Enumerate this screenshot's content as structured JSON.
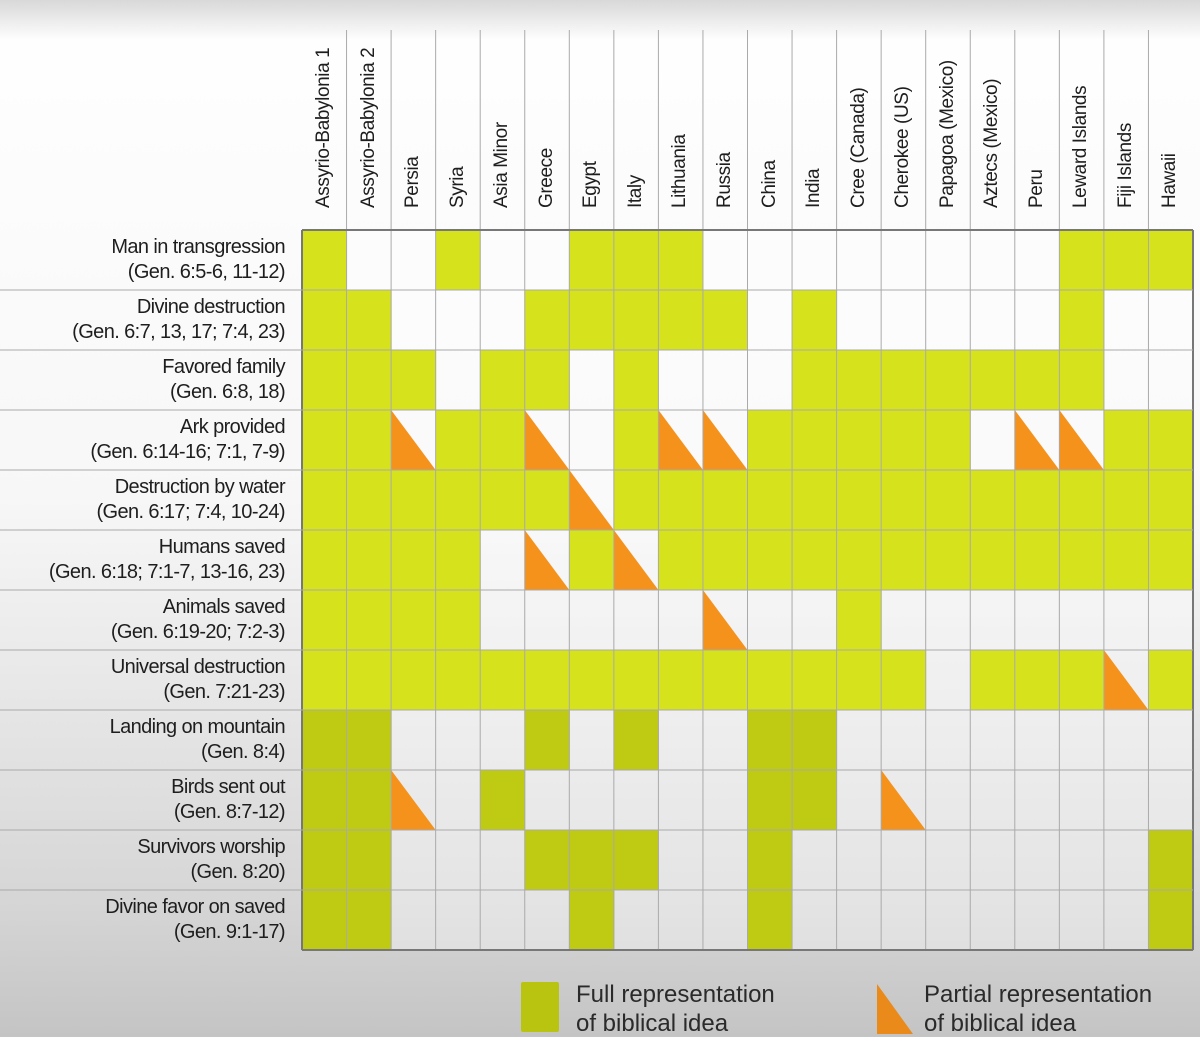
{
  "chart_data": {
    "type": "table",
    "title": "",
    "columns": [
      "Assyrio-Babylonia 1",
      "Assyrio-Babylonia 2",
      "Persia",
      "Syria",
      "Asia Minor",
      "Greece",
      "Egypt",
      "Italy",
      "Lithuania",
      "Russia",
      "China",
      "India",
      "Cree (Canada)",
      "Cherokee (US)",
      "Papagoa (Mexico)",
      "Aztecs (Mexico)",
      "Peru",
      "Leward Islands",
      "Fiji Islands",
      "Hawaii"
    ],
    "rows": [
      {
        "label": "Man in transgression",
        "ref": "(Gen. 6:5-6, 11-12)",
        "cells": [
          "F",
          "",
          "",
          "F",
          "",
          "",
          "F",
          "F",
          "F",
          "",
          "",
          "",
          "",
          "",
          "",
          "",
          "",
          "F",
          "F",
          "F"
        ]
      },
      {
        "label": "Divine destruction",
        "ref": "(Gen. 6:7, 13, 17; 7:4, 23)",
        "cells": [
          "F",
          "F",
          "",
          "",
          "",
          "F",
          "F",
          "F",
          "F",
          "F",
          "",
          "F",
          "",
          "",
          "",
          "",
          "",
          "F",
          "",
          ""
        ]
      },
      {
        "label": "Favored family",
        "ref": "(Gen. 6:8, 18)",
        "cells": [
          "F",
          "F",
          "F",
          "",
          "F",
          "F",
          "",
          "F",
          "",
          "",
          "",
          "F",
          "F",
          "F",
          "F",
          "F",
          "F",
          "F",
          "",
          ""
        ]
      },
      {
        "label": "Ark provided",
        "ref": "(Gen. 6:14-16; 7:1, 7-9)",
        "cells": [
          "F",
          "F",
          "P",
          "F",
          "F",
          "P",
          "",
          "F",
          "P",
          "P",
          "F",
          "F",
          "F",
          "F",
          "F",
          "",
          "P",
          "P",
          "F",
          "F"
        ]
      },
      {
        "label": "Destruction by water",
        "ref": "(Gen. 6:17; 7:4, 10-24)",
        "cells": [
          "F",
          "F",
          "F",
          "F",
          "F",
          "F",
          "P",
          "F",
          "F",
          "F",
          "F",
          "F",
          "F",
          "F",
          "F",
          "F",
          "F",
          "F",
          "F",
          "F"
        ]
      },
      {
        "label": "Humans saved",
        "ref": "(Gen. 6:18; 7:1-7, 13-16, 23)",
        "cells": [
          "F",
          "F",
          "F",
          "F",
          "",
          "P",
          "F",
          "P",
          "F",
          "F",
          "F",
          "F",
          "F",
          "F",
          "F",
          "F",
          "F",
          "F",
          "F",
          "F"
        ]
      },
      {
        "label": "Animals saved",
        "ref": "(Gen. 6:19-20; 7:2-3)",
        "cells": [
          "F",
          "F",
          "F",
          "F",
          "",
          "",
          "",
          "",
          "",
          "P",
          "",
          "",
          "F",
          "",
          "",
          "",
          "",
          "",
          "",
          ""
        ]
      },
      {
        "label": "Universal destruction",
        "ref": "(Gen. 7:21-23)",
        "cells": [
          "F",
          "F",
          "F",
          "F",
          "F",
          "F",
          "F",
          "F",
          "F",
          "F",
          "F",
          "F",
          "F",
          "F",
          "",
          "F",
          "F",
          "F",
          "P",
          "F"
        ]
      },
      {
        "label": "Landing on mountain",
        "ref": "(Gen. 8:4)",
        "cells": [
          "F",
          "F",
          "",
          "",
          "",
          "F",
          "",
          "F",
          "",
          "",
          "F",
          "F",
          "",
          "",
          "",
          "",
          "",
          "",
          "",
          ""
        ]
      },
      {
        "label": "Birds sent out",
        "ref": "(Gen. 8:7-12)",
        "cells": [
          "F",
          "F",
          "P",
          "",
          "F",
          "",
          "",
          "",
          "",
          "",
          "F",
          "F",
          "",
          "P",
          "",
          "",
          "",
          "",
          "",
          ""
        ]
      },
      {
        "label": "Survivors worship",
        "ref": "(Gen. 8:20)",
        "cells": [
          "F",
          "F",
          "",
          "",
          "",
          "F",
          "F",
          "F",
          "",
          "",
          "F",
          "",
          "",
          "",
          "",
          "",
          "",
          "",
          "",
          "F"
        ]
      },
      {
        "label": "Divine favor on saved",
        "ref": "(Gen. 9:1-17)",
        "cells": [
          "F",
          "F",
          "",
          "",
          "",
          "",
          "F",
          "",
          "",
          "",
          "F",
          "",
          "",
          "",
          "",
          "",
          "",
          "",
          "",
          "F"
        ]
      }
    ],
    "legend": {
      "full_line1": "Full representation",
      "full_line2": "of biblical idea",
      "partial_line1": "Partial representation",
      "partial_line2": "of biblical idea"
    },
    "colors": {
      "full_top": "#dbe91f",
      "full_bottom": "#b9c30f",
      "partial": "#f5921c",
      "grid": "#9a9a9a"
    }
  }
}
